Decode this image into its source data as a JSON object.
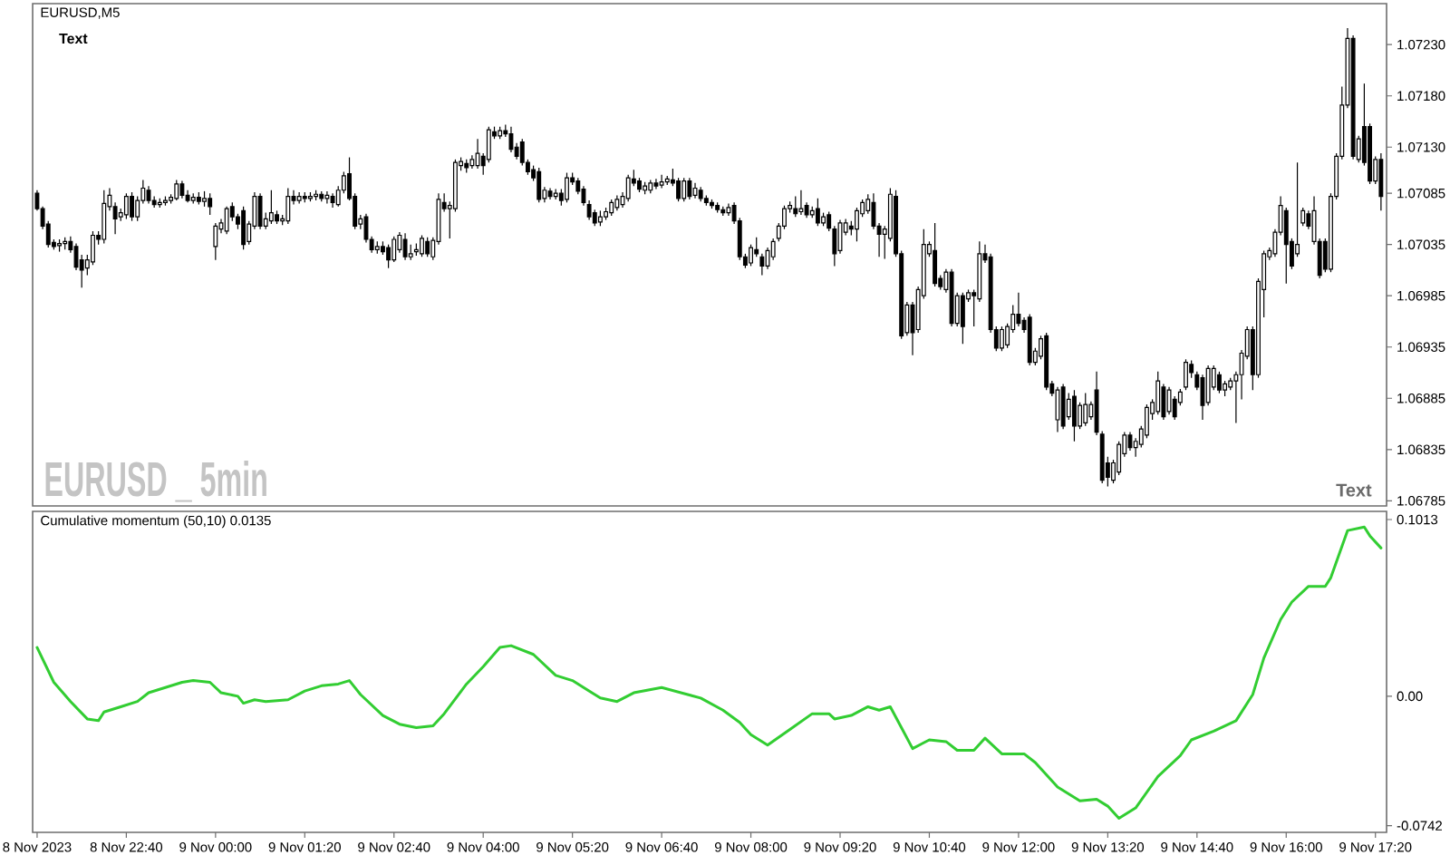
{
  "chart_data": [
    {
      "type": "candlestick",
      "title": "EURUSD,M5",
      "annotations": [
        "Text",
        "EURUSD _ 5min",
        "Text"
      ],
      "xlim": [
        "2023-11-08T21:16",
        "2023-11-09T17:30"
      ],
      "ylim": [
        1.0678,
        1.0727
      ],
      "yticks": [
        {
          "value": 1.0723,
          "label": "1.07230"
        },
        {
          "value": 1.0718,
          "label": "1.07180"
        },
        {
          "value": 1.0713,
          "label": "1.07130"
        },
        {
          "value": 1.07085,
          "label": "1.07085"
        },
        {
          "value": 1.07035,
          "label": "1.07035"
        },
        {
          "value": 1.06985,
          "label": "1.06985"
        },
        {
          "value": 1.06935,
          "label": "1.06935"
        },
        {
          "value": 1.06885,
          "label": "1.06885"
        },
        {
          "value": 1.06835,
          "label": "1.06835"
        },
        {
          "value": 1.06785,
          "label": "1.06785"
        }
      ],
      "tick_labels": "y",
      "x": [
        "2023-11-08T21:20",
        "2023-11-08T21:25",
        "2023-11-08T21:30",
        "2023-11-08T21:35",
        "2023-11-08T21:40",
        "2023-11-08T21:45",
        "2023-11-08T21:50",
        "2023-11-08T21:55",
        "2023-11-08T22:00",
        "2023-11-08T22:05",
        "2023-11-08T22:10",
        "2023-11-08T22:15",
        "2023-11-08T22:20",
        "2023-11-08T22:25",
        "2023-11-08T22:30",
        "2023-11-08T22:35",
        "2023-11-08T22:40",
        "2023-11-08T22:45",
        "2023-11-08T22:50",
        "2023-11-08T22:55",
        "2023-11-08T23:00",
        "2023-11-08T23:05",
        "2023-11-08T23:10",
        "2023-11-08T23:15",
        "2023-11-08T23:20",
        "2023-11-08T23:25",
        "2023-11-08T23:30",
        "2023-11-08T23:35",
        "2023-11-08T23:40",
        "2023-11-08T23:45",
        "2023-11-08T23:50",
        "2023-11-08T23:55",
        "2023-11-09T00:00",
        "2023-11-09T00:05",
        "2023-11-09T00:10",
        "2023-11-09T00:15",
        "2023-11-09T00:20",
        "2023-11-09T00:25",
        "2023-11-09T00:30",
        "2023-11-09T00:35",
        "2023-11-09T00:40",
        "2023-11-09T00:45",
        "2023-11-09T00:50",
        "2023-11-09T00:55",
        "2023-11-09T01:00",
        "2023-11-09T01:05",
        "2023-11-09T01:10",
        "2023-11-09T01:15",
        "2023-11-09T01:20",
        "2023-11-09T01:25",
        "2023-11-09T01:30",
        "2023-11-09T01:35",
        "2023-11-09T01:40",
        "2023-11-09T01:45",
        "2023-11-09T01:50",
        "2023-11-09T01:55",
        "2023-11-09T02:00",
        "2023-11-09T02:05",
        "2023-11-09T02:10",
        "2023-11-09T02:15",
        "2023-11-09T02:20",
        "2023-11-09T02:25",
        "2023-11-09T02:30",
        "2023-11-09T02:35",
        "2023-11-09T02:40",
        "2023-11-09T02:45",
        "2023-11-09T02:50",
        "2023-11-09T02:55",
        "2023-11-09T03:00",
        "2023-11-09T03:05",
        "2023-11-09T03:10",
        "2023-11-09T03:15",
        "2023-11-09T03:20",
        "2023-11-09T03:25",
        "2023-11-09T03:30",
        "2023-11-09T03:35",
        "2023-11-09T03:40",
        "2023-11-09T03:45",
        "2023-11-09T03:50",
        "2023-11-09T03:55",
        "2023-11-09T04:00",
        "2023-11-09T04:05",
        "2023-11-09T04:10",
        "2023-11-09T04:15",
        "2023-11-09T04:20",
        "2023-11-09T04:25",
        "2023-11-09T04:30",
        "2023-11-09T04:35",
        "2023-11-09T04:40",
        "2023-11-09T04:45",
        "2023-11-09T04:50",
        "2023-11-09T04:55",
        "2023-11-09T05:00",
        "2023-11-09T05:05",
        "2023-11-09T05:10",
        "2023-11-09T05:15",
        "2023-11-09T05:20",
        "2023-11-09T05:25",
        "2023-11-09T05:30",
        "2023-11-09T05:35",
        "2023-11-09T05:40",
        "2023-11-09T05:45",
        "2023-11-09T05:50",
        "2023-11-09T05:55",
        "2023-11-09T06:00",
        "2023-11-09T06:05",
        "2023-11-09T06:10",
        "2023-11-09T06:15",
        "2023-11-09T06:20",
        "2023-11-09T06:25",
        "2023-11-09T06:30",
        "2023-11-09T06:35",
        "2023-11-09T06:40",
        "2023-11-09T06:45",
        "2023-11-09T06:50",
        "2023-11-09T06:55",
        "2023-11-09T07:00",
        "2023-11-09T07:05",
        "2023-11-09T07:10",
        "2023-11-09T07:15",
        "2023-11-09T07:20",
        "2023-11-09T07:25",
        "2023-11-09T07:30",
        "2023-11-09T07:35",
        "2023-11-09T07:40",
        "2023-11-09T07:45",
        "2023-11-09T07:50",
        "2023-11-09T07:55",
        "2023-11-09T08:00",
        "2023-11-09T08:05",
        "2023-11-09T08:10",
        "2023-11-09T08:15",
        "2023-11-09T08:20",
        "2023-11-09T08:25",
        "2023-11-09T08:30",
        "2023-11-09T08:35",
        "2023-11-09T08:40",
        "2023-11-09T08:45",
        "2023-11-09T08:50",
        "2023-11-09T08:55",
        "2023-11-09T09:00",
        "2023-11-09T09:05",
        "2023-11-09T09:10",
        "2023-11-09T09:15",
        "2023-11-09T09:20",
        "2023-11-09T09:25",
        "2023-11-09T09:30",
        "2023-11-09T09:35",
        "2023-11-09T09:40",
        "2023-11-09T09:45",
        "2023-11-09T09:50",
        "2023-11-09T09:55",
        "2023-11-09T10:00",
        "2023-11-09T10:05",
        "2023-11-09T10:10",
        "2023-11-09T10:15",
        "2023-11-09T10:20",
        "2023-11-09T10:25",
        "2023-11-09T10:30",
        "2023-11-09T10:35",
        "2023-11-09T10:40",
        "2023-11-09T10:45",
        "2023-11-09T10:50",
        "2023-11-09T10:55",
        "2023-11-09T11:00",
        "2023-11-09T11:05",
        "2023-11-09T11:10",
        "2023-11-09T11:15",
        "2023-11-09T11:20",
        "2023-11-09T11:25",
        "2023-11-09T11:30",
        "2023-11-09T11:35",
        "2023-11-09T11:40",
        "2023-11-09T11:45",
        "2023-11-09T11:50",
        "2023-11-09T11:55",
        "2023-11-09T12:00",
        "2023-11-09T12:05",
        "2023-11-09T12:10",
        "2023-11-09T12:15",
        "2023-11-09T12:20",
        "2023-11-09T12:25",
        "2023-11-09T12:30",
        "2023-11-09T12:35",
        "2023-11-09T12:40",
        "2023-11-09T12:45",
        "2023-11-09T12:50",
        "2023-11-09T12:55",
        "2023-11-09T13:00",
        "2023-11-09T13:05",
        "2023-11-09T13:10",
        "2023-11-09T13:15",
        "2023-11-09T13:20",
        "2023-11-09T13:25",
        "2023-11-09T13:30",
        "2023-11-09T13:35",
        "2023-11-09T13:40",
        "2023-11-09T13:45",
        "2023-11-09T13:50",
        "2023-11-09T13:55",
        "2023-11-09T14:00",
        "2023-11-09T14:05",
        "2023-11-09T14:10",
        "2023-11-09T14:15",
        "2023-11-09T14:20",
        "2023-11-09T14:25",
        "2023-11-09T14:30",
        "2023-11-09T14:35",
        "2023-11-09T14:40",
        "2023-11-09T14:45",
        "2023-11-09T14:50",
        "2023-11-09T14:55",
        "2023-11-09T15:00",
        "2023-11-09T15:05",
        "2023-11-09T15:10",
        "2023-11-09T15:15",
        "2023-11-09T15:20",
        "2023-11-09T15:25",
        "2023-11-09T15:30",
        "2023-11-09T15:35",
        "2023-11-09T15:40",
        "2023-11-09T15:45",
        "2023-11-09T15:50",
        "2023-11-09T15:55",
        "2023-11-09T16:00",
        "2023-11-09T16:05",
        "2023-11-09T16:10",
        "2023-11-09T16:15",
        "2023-11-09T16:20",
        "2023-11-09T16:25",
        "2023-11-09T16:30",
        "2023-11-09T16:35",
        "2023-11-09T16:40",
        "2023-11-09T16:45",
        "2023-11-09T16:50",
        "2023-11-09T16:55",
        "2023-11-09T17:00",
        "2023-11-09T17:05",
        "2023-11-09T17:10",
        "2023-11-09T17:15",
        "2023-11-09T17:20",
        "2023-11-09T17:25"
      ],
      "ohlc": [
        [
          1.07085,
          1.07088,
          1.07068,
          1.0707
        ],
        [
          1.0707,
          1.07072,
          1.0705,
          1.07053
        ],
        [
          1.07055,
          1.07058,
          1.07032,
          1.07035
        ],
        [
          1.07037,
          1.0704,
          1.0703,
          1.07033
        ],
        [
          1.07034,
          1.0704,
          1.07028,
          1.07036
        ],
        [
          1.07036,
          1.07042,
          1.0703,
          1.07038
        ],
        [
          1.07038,
          1.07043,
          1.07027,
          1.0703
        ],
        [
          1.07033,
          1.07036,
          1.0701,
          1.07013
        ],
        [
          1.0702,
          1.07025,
          1.06993,
          1.0701
        ],
        [
          1.07012,
          1.07025,
          1.07005,
          1.0702
        ],
        [
          1.07018,
          1.07048,
          1.07015,
          1.07044
        ],
        [
          1.07044,
          1.07048,
          1.07035,
          1.0704
        ],
        [
          1.0704,
          1.07088,
          1.07036,
          1.07075
        ],
        [
          1.07072,
          1.0709,
          1.07068,
          1.07083
        ],
        [
          1.07072,
          1.07076,
          1.07045,
          1.0706
        ],
        [
          1.07062,
          1.0707,
          1.07058,
          1.07066
        ],
        [
          1.07064,
          1.07085,
          1.0706,
          1.07082
        ],
        [
          1.07082,
          1.07086,
          1.07058,
          1.07062
        ],
        [
          1.07062,
          1.07082,
          1.07058,
          1.07078
        ],
        [
          1.07078,
          1.07098,
          1.07075,
          1.0709
        ],
        [
          1.07088,
          1.07092,
          1.07075,
          1.07078
        ],
        [
          1.07078,
          1.07082,
          1.07071,
          1.07074
        ],
        [
          1.07074,
          1.0708,
          1.07071,
          1.07076
        ],
        [
          1.07076,
          1.07082,
          1.07073,
          1.07078
        ],
        [
          1.07078,
          1.07084,
          1.07075,
          1.07081
        ],
        [
          1.0708,
          1.07098,
          1.07078,
          1.07094
        ],
        [
          1.07094,
          1.07097,
          1.0708,
          1.07083
        ],
        [
          1.07083,
          1.07088,
          1.07076,
          1.07078
        ],
        [
          1.07078,
          1.07085,
          1.07075,
          1.07081
        ],
        [
          1.07081,
          1.07086,
          1.07074,
          1.07077
        ],
        [
          1.07077,
          1.07087,
          1.07072,
          1.0708
        ],
        [
          1.0708,
          1.07085,
          1.07064,
          1.07072
        ],
        [
          1.07033,
          1.07056,
          1.0702,
          1.07053
        ],
        [
          1.0705,
          1.0706,
          1.07046,
          1.07056
        ],
        [
          1.07048,
          1.07072,
          1.07045,
          1.0707
        ],
        [
          1.07072,
          1.07076,
          1.07058,
          1.07062
        ],
        [
          1.07062,
          1.07065,
          1.0705,
          1.07055
        ],
        [
          1.07068,
          1.07072,
          1.0703,
          1.07035
        ],
        [
          1.07038,
          1.07058,
          1.07035,
          1.07055
        ],
        [
          1.07053,
          1.07086,
          1.0705,
          1.07082
        ],
        [
          1.07082,
          1.07085,
          1.0705,
          1.07053
        ],
        [
          1.07053,
          1.07066,
          1.0705,
          1.0706
        ],
        [
          1.07058,
          1.07088,
          1.07055,
          1.07066
        ],
        [
          1.07064,
          1.07068,
          1.07055,
          1.07058
        ],
        [
          1.07058,
          1.07064,
          1.07054,
          1.0706
        ],
        [
          1.07058,
          1.0709,
          1.07055,
          1.07082
        ],
        [
          1.07082,
          1.07088,
          1.07074,
          1.07078
        ],
        [
          1.07078,
          1.07086,
          1.07075,
          1.07082
        ],
        [
          1.07082,
          1.07086,
          1.07076,
          1.0708
        ],
        [
          1.0708,
          1.07086,
          1.07077,
          1.07082
        ],
        [
          1.07082,
          1.07088,
          1.07078,
          1.07084
        ],
        [
          1.07084,
          1.07087,
          1.07077,
          1.0708
        ],
        [
          1.0708,
          1.07087,
          1.07075,
          1.07083
        ],
        [
          1.07082,
          1.07085,
          1.07071,
          1.07076
        ],
        [
          1.07074,
          1.07092,
          1.07072,
          1.07088
        ],
        [
          1.07088,
          1.07106,
          1.07085,
          1.07102
        ],
        [
          1.07104,
          1.0712,
          1.07078,
          1.0708
        ],
        [
          1.07082,
          1.07085,
          1.0705,
          1.07053
        ],
        [
          1.07055,
          1.07064,
          1.0705,
          1.0706
        ],
        [
          1.07062,
          1.07065,
          1.07037,
          1.0704
        ],
        [
          1.0704,
          1.07043,
          1.07027,
          1.0703
        ],
        [
          1.0703,
          1.07038,
          1.07026,
          1.07033
        ],
        [
          1.07033,
          1.07038,
          1.07025,
          1.07028
        ],
        [
          1.07032,
          1.07035,
          1.07012,
          1.0702
        ],
        [
          1.0702,
          1.07043,
          1.07018,
          1.0704
        ],
        [
          1.0703,
          1.07047,
          1.07027,
          1.07044
        ],
        [
          1.0704,
          1.07046,
          1.0702,
          1.07023
        ],
        [
          1.07023,
          1.07035,
          1.0702,
          1.07026
        ],
        [
          1.07028,
          1.07036,
          1.07024,
          1.0703
        ],
        [
          1.07026,
          1.07044,
          1.07023,
          1.07041
        ],
        [
          1.07038,
          1.07042,
          1.07023,
          1.07026
        ],
        [
          1.07023,
          1.07042,
          1.0702,
          1.07039
        ],
        [
          1.07038,
          1.07085,
          1.07035,
          1.07079
        ],
        [
          1.07076,
          1.07085,
          1.07067,
          1.0707
        ],
        [
          1.0707,
          1.07077,
          1.07041,
          1.07073
        ],
        [
          1.0707,
          1.07118,
          1.07067,
          1.07115
        ],
        [
          1.07112,
          1.0712,
          1.07107,
          1.07116
        ],
        [
          1.07114,
          1.07118,
          1.07105,
          1.0711
        ],
        [
          1.07112,
          1.07122,
          1.07109,
          1.07118
        ],
        [
          1.07112,
          1.07138,
          1.07109,
          1.07124
        ],
        [
          1.07121,
          1.07124,
          1.07103,
          1.07112
        ],
        [
          1.07118,
          1.0715,
          1.07115,
          1.07147
        ],
        [
          1.07145,
          1.0715,
          1.07138,
          1.07141
        ],
        [
          1.07141,
          1.0715,
          1.07138,
          1.07146
        ],
        [
          1.07146,
          1.07152,
          1.0714,
          1.07143
        ],
        [
          1.07143,
          1.0715,
          1.07125,
          1.07128
        ],
        [
          1.0713,
          1.07134,
          1.07118,
          1.07121
        ],
        [
          1.07135,
          1.07138,
          1.07112,
          1.07115
        ],
        [
          1.07115,
          1.07118,
          1.07103,
          1.07106
        ],
        [
          1.07108,
          1.07112,
          1.07097,
          1.071
        ],
        [
          1.07106,
          1.0711,
          1.07076,
          1.07079
        ],
        [
          1.0708,
          1.07091,
          1.07076,
          1.07088
        ],
        [
          1.07087,
          1.0709,
          1.07079,
          1.07082
        ],
        [
          1.07082,
          1.07089,
          1.07079,
          1.07085
        ],
        [
          1.07085,
          1.07089,
          1.07073,
          1.07078
        ],
        [
          1.07079,
          1.07105,
          1.07076,
          1.071
        ],
        [
          1.071,
          1.07105,
          1.07093,
          1.07096
        ],
        [
          1.07097,
          1.071,
          1.07084,
          1.07087
        ],
        [
          1.07089,
          1.07092,
          1.07073,
          1.07076
        ],
        [
          1.07074,
          1.07078,
          1.07059,
          1.07062
        ],
        [
          1.07066,
          1.07069,
          1.07053,
          1.07056
        ],
        [
          1.07057,
          1.07068,
          1.07053,
          1.07062
        ],
        [
          1.07062,
          1.07071,
          1.07059,
          1.07067
        ],
        [
          1.07066,
          1.07079,
          1.07063,
          1.07076
        ],
        [
          1.07071,
          1.07083,
          1.07068,
          1.07079
        ],
        [
          1.07074,
          1.07086,
          1.07071,
          1.07082
        ],
        [
          1.0708,
          1.07103,
          1.07077,
          1.071
        ],
        [
          1.07099,
          1.07108,
          1.07092,
          1.07095
        ],
        [
          1.07097,
          1.071,
          1.07086,
          1.07089
        ],
        [
          1.07088,
          1.07096,
          1.07084,
          1.07092
        ],
        [
          1.07088,
          1.07098,
          1.07085,
          1.07095
        ],
        [
          1.07095,
          1.07099,
          1.07089,
          1.07092
        ],
        [
          1.07093,
          1.07103,
          1.0709,
          1.07096
        ],
        [
          1.07096,
          1.07102,
          1.07093,
          1.07099
        ],
        [
          1.07098,
          1.07109,
          1.07092,
          1.07095
        ],
        [
          1.07097,
          1.071,
          1.07077,
          1.0708
        ],
        [
          1.0708,
          1.071,
          1.07077,
          1.07097
        ],
        [
          1.07097,
          1.071,
          1.07079,
          1.07082
        ],
        [
          1.07083,
          1.07095,
          1.0708,
          1.0709
        ],
        [
          1.07088,
          1.07091,
          1.07077,
          1.0708
        ],
        [
          1.0708,
          1.07083,
          1.07073,
          1.07076
        ],
        [
          1.07076,
          1.07079,
          1.0707,
          1.07073
        ],
        [
          1.07073,
          1.07076,
          1.07066,
          1.07069
        ],
        [
          1.07069,
          1.07072,
          1.07063,
          1.07066
        ],
        [
          1.07066,
          1.07075,
          1.07063,
          1.07071
        ],
        [
          1.07073,
          1.07076,
          1.07055,
          1.07058
        ],
        [
          1.07058,
          1.07061,
          1.0702,
          1.07023
        ],
        [
          1.07023,
          1.07026,
          1.07012,
          1.07015
        ],
        [
          1.07017,
          1.07035,
          1.07014,
          1.07032
        ],
        [
          1.0703,
          1.07042,
          1.07023,
          1.07026
        ],
        [
          1.07023,
          1.07026,
          1.07005,
          1.07014
        ],
        [
          1.07014,
          1.07032,
          1.07011,
          1.07029
        ],
        [
          1.07023,
          1.07041,
          1.0702,
          1.07038
        ],
        [
          1.07041,
          1.07056,
          1.07038,
          1.07053
        ],
        [
          1.07053,
          1.07073,
          1.0705,
          1.0707
        ],
        [
          1.0707,
          1.07077,
          1.07066,
          1.07073
        ],
        [
          1.0707,
          1.07082,
          1.07062,
          1.07065
        ],
        [
          1.07067,
          1.07088,
          1.07064,
          1.0707
        ],
        [
          1.07073,
          1.07076,
          1.07061,
          1.07064
        ],
        [
          1.07064,
          1.07072,
          1.07061,
          1.07068
        ],
        [
          1.0707,
          1.0708,
          1.07053,
          1.07056
        ],
        [
          1.07056,
          1.07066,
          1.07053,
          1.07062
        ],
        [
          1.07064,
          1.07067,
          1.07048,
          1.07051
        ],
        [
          1.0705,
          1.07053,
          1.07014,
          1.07026
        ],
        [
          1.07029,
          1.07059,
          1.07026,
          1.07056
        ],
        [
          1.07047,
          1.0706,
          1.07044,
          1.07056
        ],
        [
          1.07053,
          1.07058,
          1.07044,
          1.0705
        ],
        [
          1.0705,
          1.07071,
          1.07038,
          1.07068
        ],
        [
          1.07065,
          1.07079,
          1.07062,
          1.07076
        ],
        [
          1.07068,
          1.07084,
          1.07065,
          1.07079
        ],
        [
          1.07076,
          1.07085,
          1.0705,
          1.07053
        ],
        [
          1.07053,
          1.07056,
          1.07023,
          1.07045
        ],
        [
          1.07045,
          1.07053,
          1.07021,
          1.0705
        ],
        [
          1.07041,
          1.0709,
          1.07038,
          1.07084
        ],
        [
          1.07082,
          1.07088,
          1.07023,
          1.07026
        ],
        [
          1.07026,
          1.07029,
          1.06943,
          1.06946
        ],
        [
          1.06949,
          1.06979,
          1.06946,
          1.06976
        ],
        [
          1.06976,
          1.06979,
          1.06927,
          1.06949
        ],
        [
          1.06952,
          1.06994,
          1.06949,
          1.06991
        ],
        [
          1.06985,
          1.0705,
          1.06982,
          1.07035
        ],
        [
          1.07026,
          1.07038,
          1.07023,
          1.07035
        ],
        [
          1.07029,
          1.07056,
          1.06994,
          1.06997
        ],
        [
          1.07002,
          1.07005,
          1.06991,
          1.06994
        ],
        [
          1.06991,
          1.07011,
          1.06988,
          1.07008
        ],
        [
          1.07008,
          1.07011,
          1.06955,
          1.06958
        ],
        [
          1.06958,
          1.06988,
          1.06955,
          1.06985
        ],
        [
          1.06985,
          1.06988,
          1.06938,
          1.06955
        ],
        [
          1.06982,
          1.06991,
          1.06979,
          1.06988
        ],
        [
          1.06988,
          1.06991,
          1.06955,
          1.06985
        ],
        [
          1.06982,
          1.07038,
          1.06979,
          1.07026
        ],
        [
          1.07026,
          1.07035,
          1.07017,
          1.0702
        ],
        [
          1.07023,
          1.07026,
          1.06949,
          1.06952
        ],
        [
          1.06952,
          1.06955,
          1.06931,
          1.06934
        ],
        [
          1.06934,
          1.06955,
          1.06931,
          1.06952
        ],
        [
          1.06937,
          1.06958,
          1.06934,
          1.06955
        ],
        [
          1.06952,
          1.06976,
          1.06949,
          1.06967
        ],
        [
          1.06967,
          1.06988,
          1.06955,
          1.06958
        ],
        [
          1.06961,
          1.06964,
          1.06949,
          1.06952
        ],
        [
          1.06964,
          1.06967,
          1.06917,
          1.0692
        ],
        [
          1.0692,
          1.06934,
          1.06917,
          1.06931
        ],
        [
          1.06926,
          1.06946,
          1.06923,
          1.06943
        ],
        [
          1.06946,
          1.06949,
          1.06893,
          1.06896
        ],
        [
          1.06899,
          1.06902,
          1.06887,
          1.0689
        ],
        [
          1.06864,
          1.06896,
          1.06852,
          1.06893
        ],
        [
          1.06896,
          1.06899,
          1.06855,
          1.06858
        ],
        [
          1.06867,
          1.0689,
          1.06864,
          1.06884
        ],
        [
          1.06887,
          1.06893,
          1.06843,
          1.06858
        ],
        [
          1.06858,
          1.06881,
          1.06855,
          1.06878
        ],
        [
          1.06861,
          1.0689,
          1.06858,
          1.06879
        ],
        [
          1.06867,
          1.06882,
          1.06864,
          1.06879
        ],
        [
          1.06893,
          1.06911,
          1.06849,
          1.06852
        ],
        [
          1.0685,
          1.06853,
          1.06802,
          1.06805
        ],
        [
          1.06822,
          1.06828,
          1.06799,
          1.06808
        ],
        [
          1.06805,
          1.06825,
          1.06802,
          1.06822
        ],
        [
          1.06813,
          1.06843,
          1.0681,
          1.0684
        ],
        [
          1.06831,
          1.06852,
          1.06828,
          1.06849
        ],
        [
          1.06849,
          1.06852,
          1.06834,
          1.06837
        ],
        [
          1.06837,
          1.06846,
          1.06828,
          1.06843
        ],
        [
          1.0684,
          1.06858,
          1.06837,
          1.06855
        ],
        [
          1.06849,
          1.06879,
          1.06846,
          1.06876
        ],
        [
          1.0687,
          1.06884,
          1.06864,
          1.06881
        ],
        [
          1.06872,
          1.06911,
          1.06869,
          1.06902
        ],
        [
          1.06896,
          1.06899,
          1.06864,
          1.06867
        ],
        [
          1.06872,
          1.06896,
          1.06869,
          1.06893
        ],
        [
          1.06884,
          1.06887,
          1.06864,
          1.06867
        ],
        [
          1.06881,
          1.06894,
          1.06878,
          1.06891
        ],
        [
          1.06896,
          1.06923,
          1.06893,
          1.0692
        ],
        [
          1.06918,
          1.06922,
          1.06905,
          1.0691
        ],
        [
          1.06908,
          1.06911,
          1.06893,
          1.06896
        ],
        [
          1.06905,
          1.06908,
          1.06864,
          1.06878
        ],
        [
          1.06881,
          1.06917,
          1.06878,
          1.06914
        ],
        [
          1.06896,
          1.06917,
          1.06893,
          1.06914
        ],
        [
          1.06908,
          1.06911,
          1.0689,
          1.06893
        ],
        [
          1.06893,
          1.06902,
          1.06887,
          1.06899
        ],
        [
          1.06896,
          1.06905,
          1.06893,
          1.06902
        ],
        [
          1.06902,
          1.06911,
          1.06861,
          1.06908
        ],
        [
          1.06908,
          1.06932,
          1.06884,
          1.06929
        ],
        [
          1.06926,
          1.06955,
          1.06923,
          1.06952
        ],
        [
          1.06952,
          1.06955,
          1.06893,
          1.06908
        ],
        [
          1.06908,
          1.07002,
          1.06905,
          1.06999
        ],
        [
          1.06991,
          1.07029,
          1.06964,
          1.07026
        ],
        [
          1.07023,
          1.07032,
          1.0702,
          1.07029
        ],
        [
          1.07026,
          1.0705,
          1.07023,
          1.07047
        ],
        [
          1.07047,
          1.07082,
          1.07044,
          1.07073
        ],
        [
          1.07068,
          1.07071,
          1.06997,
          1.07035
        ],
        [
          1.07038,
          1.07041,
          1.07011,
          1.07014
        ],
        [
          1.07026,
          1.07115,
          1.07023,
          1.07035
        ],
        [
          1.07056,
          1.07071,
          1.07053,
          1.07068
        ],
        [
          1.07065,
          1.07068,
          1.0705,
          1.07053
        ],
        [
          1.07038,
          1.07082,
          1.07035,
          1.07068
        ],
        [
          1.07038,
          1.07041,
          1.07002,
          1.07005
        ],
        [
          1.07038,
          1.07041,
          1.07008,
          1.07011
        ],
        [
          1.07011,
          1.07085,
          1.07008,
          1.07082
        ],
        [
          1.07082,
          1.07124,
          1.07079,
          1.07121
        ],
        [
          1.07121,
          1.07189,
          1.07118,
          1.07171
        ],
        [
          1.07171,
          1.07246,
          1.07168,
          1.07236
        ],
        [
          1.07236,
          1.07239,
          1.07118,
          1.07121
        ],
        [
          1.07118,
          1.07141,
          1.07115,
          1.07138
        ],
        [
          1.0715,
          1.07192,
          1.07112,
          1.07115
        ],
        [
          1.0715,
          1.07153,
          1.07094,
          1.07097
        ],
        [
          1.07097,
          1.07121,
          1.07094,
          1.07118
        ],
        [
          1.07118,
          1.07124,
          1.07068,
          1.07082
        ]
      ]
    },
    {
      "type": "line",
      "title": "Cumulative momentum (50,10) 0.0135",
      "xlim": [
        "2023-11-08T21:16",
        "2023-11-09T17:30"
      ],
      "ylim": [
        -0.078,
        0.106
      ],
      "yticks": [
        0.1013,
        {
          "value": 0,
          "label": "0.00"
        },
        -0.0742
      ],
      "xticks": [
        {
          "value": "2023-11-08T21:20",
          "label": "8 Nov 2023"
        },
        {
          "value": "2023-11-08T22:40",
          "label": "8 Nov 22:40"
        },
        {
          "value": "2023-11-09T00:00",
          "label": "9 Nov 00:00"
        },
        {
          "value": "2023-11-09T01:20",
          "label": "9 Nov 01:20"
        },
        {
          "value": "2023-11-09T02:40",
          "label": "9 Nov 02:40"
        },
        {
          "value": "2023-11-09T04:00",
          "label": "9 Nov 04:00"
        },
        {
          "value": "2023-11-09T05:20",
          "label": "9 Nov 05:20"
        },
        {
          "value": "2023-11-09T06:40",
          "label": "9 Nov 06:40"
        },
        {
          "value": "2023-11-09T08:00",
          "label": "9 Nov 08:00"
        },
        {
          "value": "2023-11-09T09:20",
          "label": "9 Nov 09:20"
        },
        {
          "value": "2023-11-09T10:40",
          "label": "9 Nov 10:40"
        },
        {
          "value": "2023-11-09T12:00",
          "label": "9 Nov 12:00"
        },
        {
          "value": "2023-11-09T13:20",
          "label": "9 Nov 13:20"
        },
        {
          "value": "2023-11-09T14:40",
          "label": "9 Nov 14:40"
        },
        {
          "value": "2023-11-09T16:00",
          "label": "9 Nov 16:00"
        },
        {
          "value": "2023-11-09T17:20",
          "label": "9 Nov 17:20"
        }
      ],
      "series": [
        {
          "color": "#32cd32",
          "x": [
            "2023-11-08T21:20",
            "2023-11-08T21:35",
            "2023-11-08T21:50",
            "2023-11-08T22:05",
            "2023-11-08T22:15",
            "2023-11-08T22:20",
            "2023-11-08T22:35",
            "2023-11-08T22:50",
            "2023-11-08T23:00",
            "2023-11-08T23:15",
            "2023-11-08T23:30",
            "2023-11-08T23:40",
            "2023-11-08T23:55",
            "2023-11-09T00:05",
            "2023-11-09T00:20",
            "2023-11-09T00:25",
            "2023-11-09T00:35",
            "2023-11-09T00:45",
            "2023-11-09T01:05",
            "2023-11-09T01:20",
            "2023-11-09T01:35",
            "2023-11-09T01:50",
            "2023-11-09T02:00",
            "2023-11-09T02:10",
            "2023-11-09T02:30",
            "2023-11-09T02:45",
            "2023-11-09T03:00",
            "2023-11-09T03:15",
            "2023-11-09T03:25",
            "2023-11-09T03:45",
            "2023-11-09T04:00",
            "2023-11-09T04:15",
            "2023-11-09T04:25",
            "2023-11-09T04:45",
            "2023-11-09T05:05",
            "2023-11-09T05:20",
            "2023-11-09T05:45",
            "2023-11-09T06:00",
            "2023-11-09T06:15",
            "2023-11-09T06:40",
            "2023-11-09T07:15",
            "2023-11-09T07:35",
            "2023-11-09T07:50",
            "2023-11-09T08:00",
            "2023-11-09T08:15",
            "2023-11-09T08:35",
            "2023-11-09T08:55",
            "2023-11-09T09:10",
            "2023-11-09T09:15",
            "2023-11-09T09:30",
            "2023-11-09T09:45",
            "2023-11-09T09:55",
            "2023-11-09T10:05",
            "2023-11-09T10:15",
            "2023-11-09T10:25",
            "2023-11-09T10:40",
            "2023-11-09T10:55",
            "2023-11-09T11:05",
            "2023-11-09T11:20",
            "2023-11-09T11:30",
            "2023-11-09T11:45",
            "2023-11-09T12:05",
            "2023-11-09T12:15",
            "2023-11-09T12:35",
            "2023-11-09T12:55",
            "2023-11-09T13:10",
            "2023-11-09T13:20",
            "2023-11-09T13:30",
            "2023-11-09T13:45",
            "2023-11-09T14:05",
            "2023-11-09T14:25",
            "2023-11-09T14:35",
            "2023-11-09T14:55",
            "2023-11-09T15:15",
            "2023-11-09T15:30",
            "2023-11-09T15:40",
            "2023-11-09T15:55",
            "2023-11-09T16:05",
            "2023-11-09T16:20",
            "2023-11-09T16:35",
            "2023-11-09T16:40",
            "2023-11-09T16:55",
            "2023-11-09T17:10",
            "2023-11-09T17:15",
            "2023-11-09T17:25"
          ],
          "values": [
            0.028,
            0.008,
            -0.003,
            -0.013,
            -0.014,
            -0.009,
            -0.006,
            -0.003,
            0.002,
            0.005,
            0.008,
            0.009,
            0.008,
            0.002,
            0.0,
            -0.004,
            -0.002,
            -0.003,
            -0.002,
            0.003,
            0.006,
            0.007,
            0.009,
            0.001,
            -0.011,
            -0.016,
            -0.018,
            -0.017,
            -0.01,
            0.007,
            0.017,
            0.028,
            0.029,
            0.024,
            0.012,
            0.009,
            -0.001,
            -0.003,
            0.002,
            0.005,
            -0.001,
            -0.008,
            -0.015,
            -0.022,
            -0.028,
            -0.019,
            -0.01,
            -0.01,
            -0.013,
            -0.011,
            -0.006,
            -0.008,
            -0.006,
            -0.018,
            -0.03,
            -0.025,
            -0.026,
            -0.031,
            -0.031,
            -0.024,
            -0.033,
            -0.033,
            -0.038,
            -0.052,
            -0.06,
            -0.059,
            -0.063,
            -0.07,
            -0.064,
            -0.046,
            -0.034,
            -0.025,
            -0.02,
            -0.014,
            0.001,
            0.022,
            0.044,
            0.054,
            0.063,
            0.063,
            0.068,
            0.095,
            0.097,
            0.092,
            0.085
          ]
        }
      ]
    }
  ]
}
